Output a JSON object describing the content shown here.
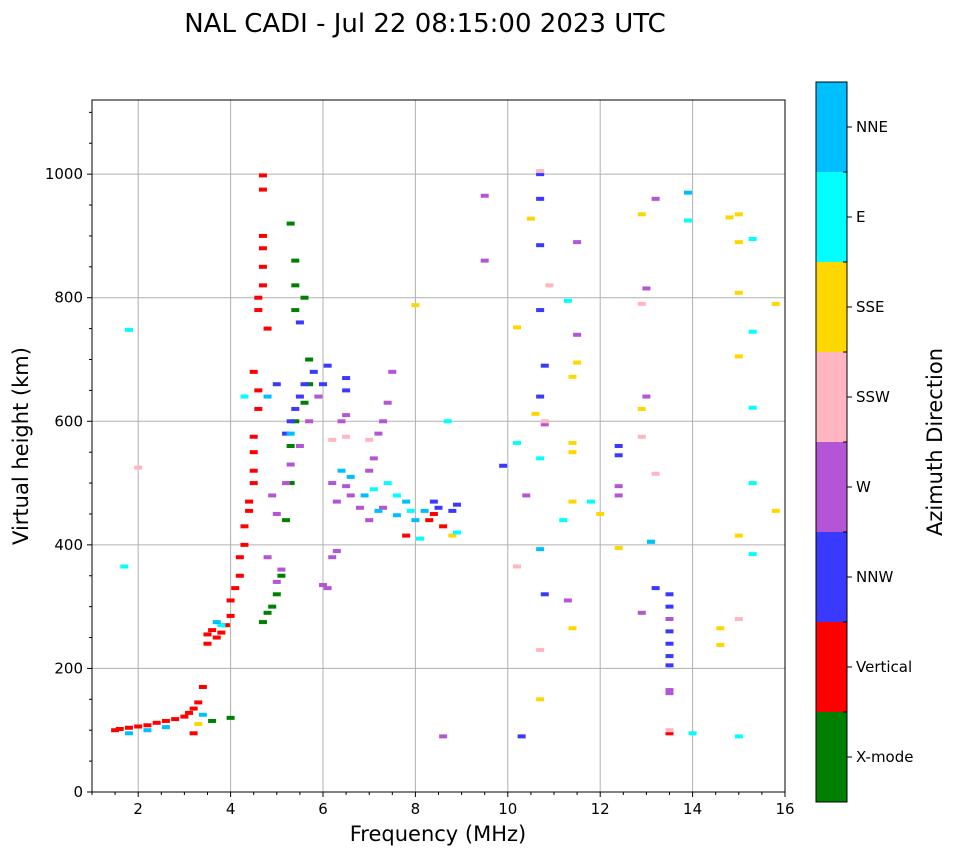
{
  "chart_data": {
    "type": "scatter",
    "title": "NAL CADI - Jul 22 08:15:00 2023 UTC",
    "xlabel": "Frequency (MHz)",
    "ylabel": "Virtual height (km)",
    "xlim": [
      1.0,
      16.0
    ],
    "ylim": [
      0,
      1120
    ],
    "grid": true,
    "xticks": [
      2,
      4,
      6,
      8,
      10,
      12,
      14,
      16
    ],
    "xtick_labels": [
      "2",
      "4",
      "6",
      "8",
      "10",
      "12",
      "14",
      "16"
    ],
    "yticks": [
      0,
      200,
      400,
      600,
      800,
      1000
    ],
    "ytick_labels": [
      "0",
      "200",
      "400",
      "600",
      "800",
      "1000"
    ],
    "colorbar": {
      "label": "Azimuth Direction",
      "categories": [
        "X-mode",
        "Vertical",
        "NNW",
        "W",
        "SSW",
        "SSE",
        "E",
        "NNE"
      ],
      "colors": [
        "#008000",
        "#ff0000",
        "#3a3aff",
        "#b455d6",
        "#ffb6c1",
        "#ffd700",
        "#00ffff",
        "#00bfff"
      ]
    },
    "series": [
      {
        "name": "Vertical",
        "points": [
          [
            1.5,
            100
          ],
          [
            1.6,
            102
          ],
          [
            1.8,
            104
          ],
          [
            2.0,
            106
          ],
          [
            2.2,
            108
          ],
          [
            2.4,
            112
          ],
          [
            2.6,
            115
          ],
          [
            2.8,
            118
          ],
          [
            3.0,
            122
          ],
          [
            3.1,
            128
          ],
          [
            3.2,
            135
          ],
          [
            3.3,
            145
          ],
          [
            3.2,
            95
          ],
          [
            3.4,
            170
          ],
          [
            3.5,
            240
          ],
          [
            3.5,
            255
          ],
          [
            3.6,
            262
          ],
          [
            3.7,
            250
          ],
          [
            3.8,
            258
          ],
          [
            3.9,
            270
          ],
          [
            4.0,
            285
          ],
          [
            4.0,
            310
          ],
          [
            4.1,
            330
          ],
          [
            4.2,
            350
          ],
          [
            4.2,
            380
          ],
          [
            4.3,
            400
          ],
          [
            4.3,
            430
          ],
          [
            4.4,
            455
          ],
          [
            4.4,
            470
          ],
          [
            4.5,
            500
          ],
          [
            4.5,
            520
          ],
          [
            4.5,
            550
          ],
          [
            4.5,
            575
          ],
          [
            4.6,
            620
          ],
          [
            4.6,
            650
          ],
          [
            4.6,
            780
          ],
          [
            4.6,
            800
          ],
          [
            4.7,
            820
          ],
          [
            4.7,
            850
          ],
          [
            4.7,
            880
          ],
          [
            4.7,
            900
          ],
          [
            4.7,
            975
          ],
          [
            4.7,
            998
          ],
          [
            4.8,
            750
          ],
          [
            4.5,
            680
          ],
          [
            8.3,
            440
          ],
          [
            8.4,
            450
          ],
          [
            8.6,
            430
          ],
          [
            13.5,
            95
          ],
          [
            7.8,
            415
          ]
        ]
      },
      {
        "name": "X-mode",
        "points": [
          [
            3.6,
            115
          ],
          [
            4.0,
            120
          ],
          [
            4.7,
            275
          ],
          [
            4.8,
            290
          ],
          [
            4.9,
            300
          ],
          [
            5.0,
            320
          ],
          [
            5.1,
            350
          ],
          [
            5.2,
            440
          ],
          [
            5.3,
            500
          ],
          [
            5.3,
            560
          ],
          [
            5.4,
            600
          ],
          [
            5.6,
            630
          ],
          [
            5.7,
            660
          ],
          [
            5.7,
            700
          ],
          [
            5.4,
            780
          ],
          [
            5.4,
            820
          ],
          [
            5.6,
            800
          ],
          [
            5.3,
            920
          ],
          [
            5.4,
            860
          ]
        ]
      },
      {
        "name": "NNW",
        "points": [
          [
            5.2,
            580
          ],
          [
            5.3,
            600
          ],
          [
            5.4,
            620
          ],
          [
            5.5,
            640
          ],
          [
            5.6,
            660
          ],
          [
            5.8,
            680
          ],
          [
            6.1,
            690
          ],
          [
            6.5,
            670
          ],
          [
            6.5,
            650
          ],
          [
            6.0,
            660
          ],
          [
            5.5,
            760
          ],
          [
            5.0,
            660
          ],
          [
            8.4,
            470
          ],
          [
            8.5,
            460
          ],
          [
            8.8,
            455
          ],
          [
            8.9,
            465
          ],
          [
            9.9,
            528
          ],
          [
            10.3,
            90
          ],
          [
            10.7,
            780
          ],
          [
            10.7,
            1000
          ],
          [
            10.7,
            960
          ],
          [
            10.7,
            885
          ],
          [
            10.7,
            640
          ],
          [
            10.8,
            690
          ],
          [
            10.8,
            320
          ],
          [
            12.4,
            560
          ],
          [
            12.4,
            545
          ],
          [
            13.2,
            330
          ],
          [
            13.5,
            320
          ],
          [
            13.5,
            300
          ],
          [
            13.5,
            280
          ],
          [
            13.5,
            260
          ],
          [
            13.5,
            240
          ],
          [
            13.5,
            220
          ],
          [
            13.5,
            205
          ]
        ]
      },
      {
        "name": "W",
        "points": [
          [
            5.0,
            340
          ],
          [
            5.1,
            360
          ],
          [
            5.2,
            500
          ],
          [
            5.0,
            450
          ],
          [
            5.5,
            560
          ],
          [
            5.7,
            600
          ],
          [
            5.9,
            640
          ],
          [
            6.2,
            500
          ],
          [
            6.3,
            470
          ],
          [
            6.2,
            380
          ],
          [
            6.3,
            390
          ],
          [
            6.0,
            335
          ],
          [
            6.1,
            330
          ],
          [
            6.5,
            495
          ],
          [
            6.6,
            480
          ],
          [
            6.8,
            460
          ],
          [
            7.0,
            440
          ],
          [
            7.1,
            540
          ],
          [
            7.2,
            580
          ],
          [
            7.3,
            600
          ],
          [
            7.4,
            630
          ],
          [
            7.5,
            680
          ],
          [
            5.3,
            530
          ],
          [
            4.9,
            480
          ],
          [
            4.8,
            380
          ],
          [
            6.4,
            600
          ],
          [
            6.5,
            610
          ],
          [
            7.0,
            520
          ],
          [
            7.3,
            460
          ],
          [
            8.6,
            90
          ],
          [
            9.5,
            965
          ],
          [
            9.5,
            860
          ],
          [
            10.4,
            480
          ],
          [
            10.8,
            595
          ],
          [
            11.3,
            310
          ],
          [
            11.5,
            740
          ],
          [
            11.5,
            890
          ],
          [
            12.4,
            495
          ],
          [
            12.4,
            480
          ],
          [
            12.9,
            290
          ],
          [
            13.0,
            640
          ],
          [
            13.0,
            815
          ],
          [
            13.2,
            960
          ],
          [
            13.5,
            165
          ],
          [
            13.5,
            160
          ],
          [
            13.5,
            280
          ]
        ]
      },
      {
        "name": "SSW",
        "points": [
          [
            2.0,
            525
          ],
          [
            6.2,
            570
          ],
          [
            6.5,
            575
          ],
          [
            7.0,
            570
          ],
          [
            10.7,
            1005
          ],
          [
            10.8,
            600
          ],
          [
            10.9,
            820
          ],
          [
            12.9,
            575
          ],
          [
            12.9,
            790
          ],
          [
            13.2,
            515
          ],
          [
            15.0,
            280
          ],
          [
            13.5,
            100
          ],
          [
            10.7,
            230
          ],
          [
            10.2,
            365
          ]
        ]
      },
      {
        "name": "SSE",
        "points": [
          [
            3.3,
            110
          ],
          [
            8.0,
            788
          ],
          [
            8.8,
            415
          ],
          [
            10.2,
            752
          ],
          [
            10.5,
            928
          ],
          [
            10.6,
            612
          ],
          [
            10.7,
            150
          ],
          [
            11.4,
            565
          ],
          [
            11.4,
            550
          ],
          [
            11.4,
            470
          ],
          [
            11.4,
            265
          ],
          [
            11.5,
            695
          ],
          [
            11.4,
            672
          ],
          [
            12.0,
            450
          ],
          [
            12.4,
            395
          ],
          [
            12.9,
            620
          ],
          [
            12.9,
            935
          ],
          [
            14.6,
            265
          ],
          [
            14.6,
            238
          ],
          [
            14.8,
            930
          ],
          [
            15.0,
            935
          ],
          [
            15.0,
            890
          ],
          [
            15.0,
            808
          ],
          [
            15.0,
            705
          ],
          [
            15.0,
            415
          ],
          [
            15.8,
            790
          ],
          [
            15.8,
            455
          ]
        ]
      },
      {
        "name": "E",
        "points": [
          [
            1.8,
            748
          ],
          [
            1.7,
            365
          ],
          [
            3.8,
            270
          ],
          [
            4.3,
            640
          ],
          [
            7.1,
            490
          ],
          [
            7.4,
            500
          ],
          [
            7.6,
            480
          ],
          [
            7.9,
            455
          ],
          [
            8.1,
            410
          ],
          [
            8.7,
            600
          ],
          [
            8.9,
            420
          ],
          [
            10.2,
            565
          ],
          [
            10.7,
            540
          ],
          [
            11.2,
            440
          ],
          [
            11.3,
            795
          ],
          [
            11.8,
            470
          ],
          [
            13.1,
            405
          ],
          [
            13.9,
            925
          ],
          [
            14.0,
            95
          ],
          [
            15.0,
            90
          ],
          [
            15.3,
            895
          ],
          [
            15.3,
            745
          ],
          [
            15.3,
            622
          ],
          [
            15.3,
            500
          ],
          [
            15.3,
            385
          ]
        ]
      },
      {
        "name": "NNE",
        "points": [
          [
            1.8,
            95
          ],
          [
            2.2,
            100
          ],
          [
            2.6,
            105
          ],
          [
            3.4,
            125
          ],
          [
            3.7,
            275
          ],
          [
            4.8,
            640
          ],
          [
            5.3,
            580
          ],
          [
            6.4,
            520
          ],
          [
            6.6,
            510
          ],
          [
            6.9,
            480
          ],
          [
            7.2,
            455
          ],
          [
            7.6,
            448
          ],
          [
            7.8,
            470
          ],
          [
            8.0,
            440
          ],
          [
            8.2,
            455
          ],
          [
            10.7,
            393
          ],
          [
            13.1,
            405
          ],
          [
            13.9,
            970
          ]
        ]
      }
    ]
  }
}
